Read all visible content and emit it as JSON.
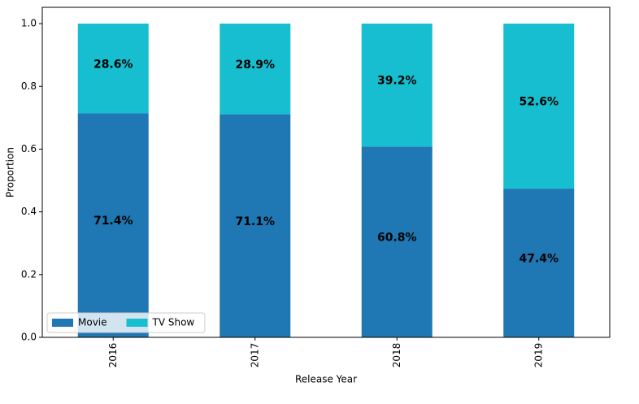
{
  "chart_data": {
    "type": "stacked_bar",
    "x_label": "Release Year",
    "y_label": "Proportion",
    "categories": [
      "2016",
      "2017",
      "2018",
      "2019"
    ],
    "series": [
      {
        "name": "Movie",
        "color": "#1f77b4",
        "values": [
          0.714,
          0.711,
          0.608,
          0.474
        ],
        "value_labels": [
          "71.4%",
          "71.1%",
          "60.8%",
          "47.4%"
        ]
      },
      {
        "name": "TV Show",
        "color": "#17becf",
        "values": [
          0.286,
          0.289,
          0.392,
          0.526
        ],
        "value_labels": [
          "28.6%",
          "28.9%",
          "39.2%",
          "52.6%"
        ]
      }
    ],
    "ylim": [
      0,
      1.052
    ],
    "yticks": [
      {
        "value": 0,
        "label": "0.0"
      },
      0.2,
      0.4,
      0.6,
      0.8,
      {
        "value": 1,
        "label": "1.0"
      }
    ],
    "grid": false,
    "legend": "lower left"
  }
}
